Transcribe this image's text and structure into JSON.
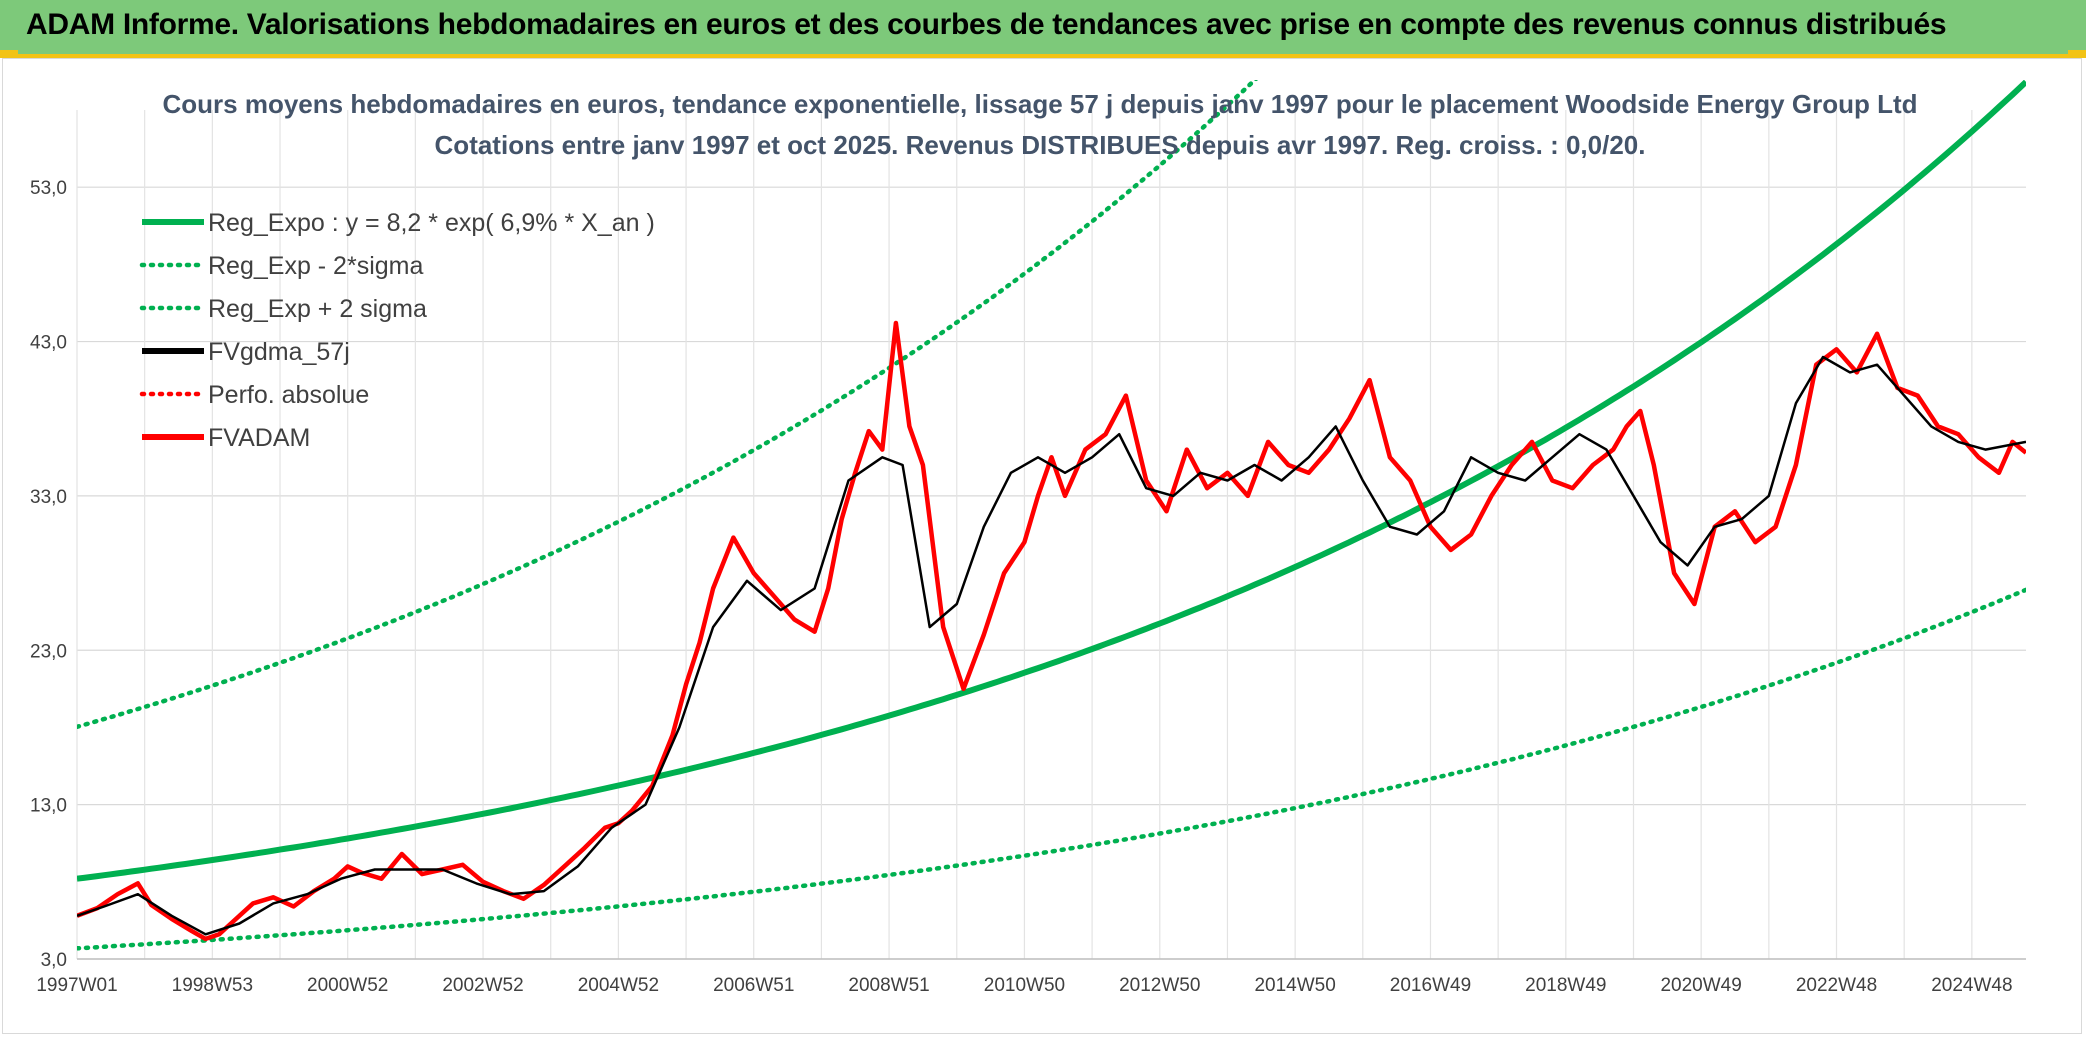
{
  "banner": {
    "title": "ADAM Informe. Valorisations hebdomadaires en euros et des courbes de tendances avec prise en compte des revenus connus distribués"
  },
  "colors": {
    "banner_bg": "#7dc97a",
    "banner_edge": "#f2c316",
    "reg": "#00b050",
    "gdma": "#000000",
    "adam": "#ff0000",
    "perfo": "#ff0000"
  },
  "chart_data": {
    "type": "line",
    "title": "Cours moyens hebdomadaires en euros, tendance exponentielle, lissage 57 j depuis janv 1997 pour le placement Woodside Energy Group Ltd",
    "subtitle": "Cotations entre janv 1997 et oct 2025. Revenus DISTRIBUES depuis avr 1997. Reg. croiss. : 0,0/20.",
    "x_range": [
      1997.0,
      2025.8
    ],
    "ylim": [
      3.0,
      58.0
    ],
    "y_ticks": [
      "3,0",
      "13,0",
      "23,0",
      "33,0",
      "43,0",
      "53,0"
    ],
    "y_tick_values": [
      3,
      13,
      23,
      33,
      43,
      53
    ],
    "x_ticks": [
      "1997W01",
      "1998W53",
      "2000W52",
      "2002W52",
      "2004W52",
      "2006W51",
      "2008W51",
      "2010W50",
      "2012W50",
      "2014W50",
      "2016W49",
      "2018W49",
      "2020W49",
      "2022W48",
      "2024W48"
    ],
    "x_tick_values": [
      1997.0,
      1999.0,
      2001.0,
      2003.0,
      2005.0,
      2007.0,
      2009.0,
      2011.0,
      2013.0,
      2015.0,
      2017.0,
      2019.0,
      2021.0,
      2023.0,
      2025.0
    ],
    "grid": true,
    "legend_position": "top-left",
    "regression": {
      "a": 8.2,
      "rate": 0.069,
      "start": 1997.0,
      "sigma_factor_low": 0.45,
      "sigma_factor_high": 2.2
    },
    "legend": [
      {
        "label": "Reg_Expo : y = 8,2 * exp( 6,9% *  X_an )",
        "color": "#00b050",
        "style": "solid"
      },
      {
        "label": "Reg_Exp - 2*sigma",
        "color": "#00b050",
        "style": "dotted"
      },
      {
        "label": "Reg_Exp + 2 sigma",
        "color": "#00b050",
        "style": "dotted"
      },
      {
        "label": "FVgdma_57j",
        "color": "#000000",
        "style": "solid"
      },
      {
        "label": "Perfo. absolue",
        "color": "#ff0000",
        "style": "dotted"
      },
      {
        "label": "FVADAM",
        "color": "#ff0000",
        "style": "solid"
      }
    ],
    "series": [
      {
        "name": "FVADAM",
        "x": [
          1997.0,
          1997.3,
          1997.6,
          1997.9,
          1998.1,
          1998.4,
          1998.7,
          1998.9,
          1999.1,
          1999.3,
          1999.6,
          1999.9,
          2000.2,
          2000.5,
          2000.8,
          2001.0,
          2001.2,
          2001.5,
          2001.8,
          2002.1,
          2002.4,
          2002.7,
          2003.0,
          2003.3,
          2003.6,
          2003.9,
          2004.2,
          2004.5,
          2004.8,
          2005.0,
          2005.2,
          2005.5,
          2005.8,
          2006.0,
          2006.2,
          2006.4,
          2006.7,
          2007.0,
          2007.3,
          2007.6,
          2007.9,
          2008.1,
          2008.3,
          2008.5,
          2008.7,
          2008.9,
          2009.1,
          2009.3,
          2009.5,
          2009.8,
          2010.1,
          2010.4,
          2010.7,
          2011.0,
          2011.2,
          2011.4,
          2011.6,
          2011.9,
          2012.2,
          2012.5,
          2012.8,
          2013.1,
          2013.4,
          2013.7,
          2014.0,
          2014.3,
          2014.6,
          2014.9,
          2015.2,
          2015.5,
          2015.8,
          2016.1,
          2016.4,
          2016.7,
          2017.0,
          2017.3,
          2017.6,
          2017.9,
          2018.2,
          2018.5,
          2018.8,
          2019.1,
          2019.4,
          2019.7,
          2019.9,
          2020.1,
          2020.3,
          2020.6,
          2020.9,
          2021.2,
          2021.5,
          2021.8,
          2022.1,
          2022.4,
          2022.7,
          2023.0,
          2023.3,
          2023.6,
          2023.9,
          2024.2,
          2024.5,
          2024.8,
          2025.1,
          2025.4,
          2025.6,
          2025.8
        ],
        "y": [
          5.8,
          6.3,
          7.2,
          7.9,
          6.5,
          5.6,
          4.8,
          4.3,
          4.6,
          5.4,
          6.6,
          7.0,
          6.4,
          7.4,
          8.2,
          9.0,
          8.6,
          8.2,
          9.8,
          8.5,
          8.8,
          9.1,
          8.0,
          7.4,
          6.9,
          7.8,
          9.0,
          10.2,
          11.5,
          11.8,
          12.6,
          14.2,
          17.5,
          20.8,
          23.5,
          27.0,
          30.3,
          28.0,
          26.5,
          25.0,
          24.2,
          27.0,
          31.5,
          34.5,
          37.2,
          36.0,
          44.2,
          37.5,
          35.0,
          24.5,
          20.5,
          24.0,
          28.0,
          30.0,
          33.0,
          35.5,
          33.0,
          36.0,
          37.0,
          39.5,
          34.0,
          32.0,
          36.0,
          33.5,
          34.5,
          33.0,
          36.5,
          35.0,
          34.5,
          36.0,
          38.0,
          40.5,
          35.5,
          34.0,
          31.0,
          29.5,
          30.5,
          33.0,
          35.0,
          36.5,
          34.0,
          33.5,
          35.0,
          36.0,
          37.5,
          38.5,
          35.0,
          28.0,
          26.0,
          31.0,
          32.0,
          30.0,
          31.0,
          35.0,
          41.5,
          42.5,
          41.0,
          43.5,
          40.0,
          39.5,
          37.5,
          37.0,
          35.5,
          34.5,
          36.5,
          35.8
        ]
      },
      {
        "name": "FVgdma_57j",
        "x": [
          1997.0,
          1997.4,
          1997.9,
          1998.4,
          1998.9,
          1999.4,
          1999.9,
          2000.4,
          2000.9,
          2001.4,
          2001.9,
          2002.4,
          2002.9,
          2003.4,
          2003.9,
          2004.4,
          2004.9,
          2005.4,
          2005.9,
          2006.4,
          2006.9,
          2007.4,
          2007.9,
          2008.4,
          2008.9,
          2009.2,
          2009.6,
          2010.0,
          2010.4,
          2010.8,
          2011.2,
          2011.6,
          2012.0,
          2012.4,
          2012.8,
          2013.2,
          2013.6,
          2014.0,
          2014.4,
          2014.8,
          2015.2,
          2015.6,
          2016.0,
          2016.4,
          2016.8,
          2017.2,
          2017.6,
          2018.0,
          2018.4,
          2018.8,
          2019.2,
          2019.6,
          2020.0,
          2020.4,
          2020.8,
          2021.2,
          2021.6,
          2022.0,
          2022.4,
          2022.8,
          2023.2,
          2023.6,
          2024.0,
          2024.4,
          2024.8,
          2025.2,
          2025.8
        ],
        "y": [
          5.8,
          6.4,
          7.2,
          5.8,
          4.6,
          5.3,
          6.6,
          7.2,
          8.2,
          8.8,
          8.8,
          8.8,
          7.9,
          7.2,
          7.4,
          9.0,
          11.5,
          13.0,
          18.0,
          24.5,
          27.5,
          25.6,
          27.0,
          34.0,
          35.5,
          35.0,
          24.5,
          26.0,
          31.0,
          34.5,
          35.5,
          34.5,
          35.5,
          37.0,
          33.5,
          33.0,
          34.5,
          34.0,
          35.0,
          34.0,
          35.5,
          37.5,
          34.0,
          31.0,
          30.5,
          32.0,
          35.5,
          34.5,
          34.0,
          35.5,
          37.0,
          36.0,
          33.0,
          30.0,
          28.5,
          31.0,
          31.5,
          33.0,
          39.0,
          42.0,
          41.0,
          41.5,
          39.5,
          37.5,
          36.5,
          36.0,
          36.5
        ]
      }
    ]
  }
}
